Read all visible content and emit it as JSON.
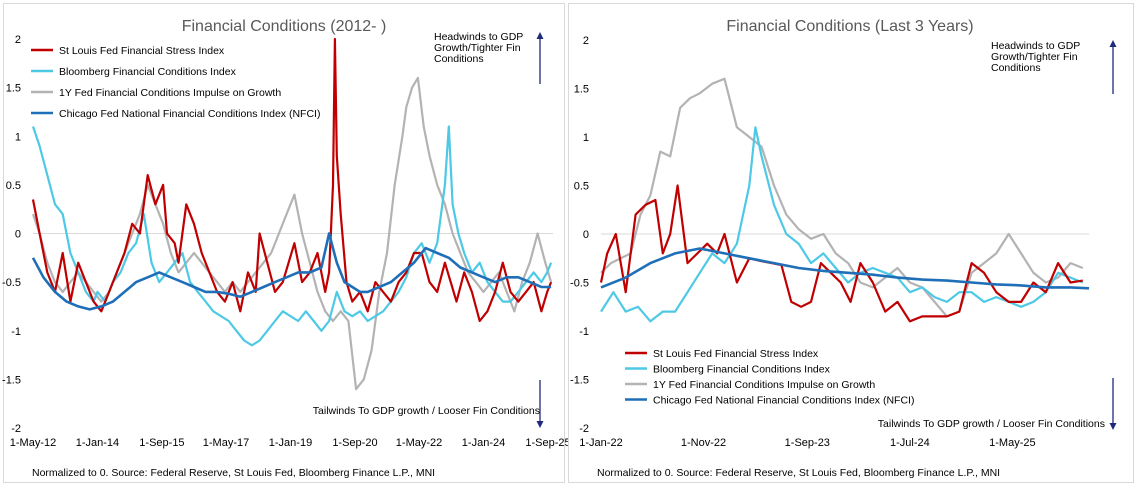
{
  "colors": {
    "red": "#c00000",
    "cyan": "#4dc9e6",
    "gray": "#b3b3b3",
    "blue": "#1f6fb8",
    "arrow": "#1f2a7a",
    "zero": "#d9d9d9"
  },
  "chart_data": [
    {
      "type": "line",
      "title": "Financial Conditions (2012- )",
      "xlabel": "",
      "ylabel": "",
      "ylim": [
        -2,
        2
      ],
      "xlim": [
        2012.33,
        2025.8
      ],
      "yticks": [
        "2",
        "1.5",
        "1",
        "0.5",
        "0",
        "-0.5",
        "-1",
        "-1.5",
        "-2"
      ],
      "ytick_values": [
        2,
        1.5,
        1,
        0.5,
        0,
        -0.5,
        -1,
        -1.5,
        -2
      ],
      "xticks": [
        "1-May-12",
        "1-Jan-14",
        "1-Sep-15",
        "1-May-17",
        "1-Jan-19",
        "1-Sep-20",
        "1-May-22",
        "1-Jan-24",
        "1-Sep-25"
      ],
      "xtick_values": [
        2012.33,
        2014.0,
        2015.67,
        2017.33,
        2019.0,
        2020.67,
        2022.33,
        2024.0,
        2025.67
      ],
      "legend_position": "top-left",
      "annotations": {
        "top": [
          "Headwinds to GDP",
          "Growth/Tighter Fin",
          "Conditions"
        ],
        "bottom": [
          "Tailwinds To GDP growth / Looser Fin Conditions"
        ]
      },
      "source": "Normalized to 0. Source: Federal Reserve, St Louis Fed, Bloomberg Finance L.P., MNI",
      "series": [
        {
          "name": "St Louis Fed Financial Stress Index",
          "color": "red",
          "x": [
            2012.33,
            2012.5,
            2012.7,
            2012.9,
            2013.1,
            2013.3,
            2013.5,
            2013.7,
            2013.9,
            2014.1,
            2014.3,
            2014.5,
            2014.7,
            2014.9,
            2015.1,
            2015.3,
            2015.5,
            2015.7,
            2015.8,
            2016.0,
            2016.1,
            2016.3,
            2016.5,
            2016.7,
            2016.9,
            2017.1,
            2017.3,
            2017.5,
            2017.7,
            2017.9,
            2018.1,
            2018.2,
            2018.4,
            2018.6,
            2018.8,
            2018.95,
            2019.1,
            2019.3,
            2019.5,
            2019.7,
            2019.9,
            2020.0,
            2020.1,
            2020.15,
            2020.2,
            2020.3,
            2020.45,
            2020.6,
            2020.8,
            2021.0,
            2021.2,
            2021.4,
            2021.6,
            2021.8,
            2022.0,
            2022.2,
            2022.4,
            2022.6,
            2022.8,
            2023.0,
            2023.15,
            2023.3,
            2023.5,
            2023.7,
            2023.9,
            2024.1,
            2024.3,
            2024.5,
            2024.7,
            2024.9,
            2025.1,
            2025.3,
            2025.5,
            2025.65,
            2025.75
          ],
          "values": [
            0.35,
            0.0,
            -0.4,
            -0.6,
            -0.2,
            -0.7,
            -0.3,
            -0.5,
            -0.7,
            -0.8,
            -0.6,
            -0.4,
            -0.2,
            0.1,
            0.0,
            0.6,
            0.3,
            0.5,
            0.0,
            -0.1,
            -0.3,
            0.3,
            0.1,
            -0.2,
            -0.4,
            -0.6,
            -0.7,
            -0.5,
            -0.8,
            -0.4,
            -0.6,
            0.0,
            -0.3,
            -0.6,
            -0.5,
            -0.3,
            -0.1,
            -0.5,
            -0.4,
            -0.2,
            -0.6,
            -0.4,
            0.5,
            2.0,
            0.8,
            0.2,
            -0.5,
            -0.7,
            -0.6,
            -0.8,
            -0.5,
            -0.6,
            -0.7,
            -0.5,
            -0.4,
            -0.2,
            -0.2,
            -0.5,
            -0.6,
            -0.3,
            -0.5,
            -0.7,
            -0.4,
            -0.6,
            -0.9,
            -0.8,
            -0.6,
            -0.3,
            -0.6,
            -0.7,
            -0.6,
            -0.5,
            -0.8,
            -0.6,
            -0.5
          ]
        },
        {
          "name": "Bloomberg Financial Conditions Index",
          "color": "cyan",
          "x": [
            2012.33,
            2012.5,
            2012.7,
            2012.9,
            2013.1,
            2013.3,
            2013.5,
            2013.7,
            2013.9,
            2014.0,
            2014.2,
            2014.4,
            2014.6,
            2014.8,
            2015.0,
            2015.2,
            2015.4,
            2015.6,
            2015.8,
            2016.0,
            2016.2,
            2016.4,
            2016.6,
            2016.8,
            2017.0,
            2017.2,
            2017.4,
            2017.6,
            2017.8,
            2018.0,
            2018.2,
            2018.4,
            2018.6,
            2018.8,
            2019.0,
            2019.2,
            2019.4,
            2019.6,
            2019.8,
            2020.0,
            2020.2,
            2020.4,
            2020.6,
            2020.8,
            2021.0,
            2021.2,
            2021.4,
            2021.6,
            2021.8,
            2022.0,
            2022.2,
            2022.4,
            2022.6,
            2022.8,
            2023.0,
            2023.1,
            2023.2,
            2023.35,
            2023.5,
            2023.7,
            2023.9,
            2024.1,
            2024.3,
            2024.5,
            2024.7,
            2024.9,
            2025.1,
            2025.3,
            2025.5,
            2025.65,
            2025.75
          ],
          "values": [
            1.1,
            0.9,
            0.6,
            0.3,
            0.2,
            -0.2,
            -0.4,
            -0.6,
            -0.7,
            -0.6,
            -0.7,
            -0.5,
            -0.4,
            -0.2,
            -0.1,
            0.2,
            -0.3,
            -0.5,
            -0.4,
            -0.3,
            -0.2,
            -0.5,
            -0.6,
            -0.7,
            -0.8,
            -0.85,
            -0.9,
            -1.0,
            -1.1,
            -1.15,
            -1.1,
            -1.0,
            -0.9,
            -0.8,
            -0.85,
            -0.9,
            -0.8,
            -0.9,
            -1.0,
            -0.9,
            -0.6,
            -0.8,
            -0.85,
            -0.8,
            -0.9,
            -0.85,
            -0.8,
            -0.7,
            -0.6,
            -0.45,
            -0.2,
            -0.1,
            -0.3,
            -0.1,
            0.5,
            1.1,
            0.3,
            0.0,
            -0.2,
            -0.4,
            -0.3,
            -0.5,
            -0.6,
            -0.7,
            -0.7,
            -0.6,
            -0.5,
            -0.4,
            -0.5,
            -0.4,
            -0.3
          ]
        },
        {
          "name": "1Y Fed Financial Conditions Impulse on Growth",
          "color": "gray",
          "x": [
            2012.33,
            2012.5,
            2012.7,
            2012.9,
            2013.1,
            2013.3,
            2013.5,
            2013.7,
            2013.9,
            2014.1,
            2014.3,
            2014.5,
            2014.7,
            2014.9,
            2015.1,
            2015.3,
            2015.5,
            2015.7,
            2015.9,
            2016.1,
            2016.3,
            2016.5,
            2016.7,
            2016.9,
            2017.1,
            2017.3,
            2017.5,
            2017.7,
            2017.9,
            2018.1,
            2018.3,
            2018.5,
            2018.7,
            2018.9,
            2019.1,
            2019.3,
            2019.5,
            2019.7,
            2019.9,
            2020.1,
            2020.3,
            2020.5,
            2020.7,
            2020.9,
            2021.1,
            2021.3,
            2021.5,
            2021.7,
            2021.9,
            2022.0,
            2022.15,
            2022.3,
            2022.45,
            2022.6,
            2022.8,
            2023.0,
            2023.2,
            2023.4,
            2023.6,
            2023.8,
            2024.0,
            2024.2,
            2024.4,
            2024.6,
            2024.8,
            2025.0,
            2025.2,
            2025.4,
            2025.6,
            2025.75
          ],
          "values": [
            0.2,
            0.0,
            -0.3,
            -0.5,
            -0.6,
            -0.5,
            -0.4,
            -0.5,
            -0.6,
            -0.7,
            -0.6,
            -0.4,
            -0.2,
            0.0,
            0.2,
            0.5,
            0.3,
            0.1,
            -0.2,
            -0.4,
            -0.3,
            -0.2,
            -0.3,
            -0.4,
            -0.5,
            -0.6,
            -0.5,
            -0.6,
            -0.5,
            -0.4,
            -0.3,
            -0.2,
            0.0,
            0.2,
            0.4,
            0.0,
            -0.3,
            -0.6,
            -0.8,
            -0.9,
            -0.8,
            -0.9,
            -1.6,
            -1.5,
            -1.2,
            -0.6,
            -0.2,
            0.5,
            1.0,
            1.3,
            1.5,
            1.6,
            1.1,
            0.8,
            0.5,
            0.3,
            0.0,
            -0.2,
            -0.4,
            -0.5,
            -0.6,
            -0.5,
            -0.4,
            -0.6,
            -0.8,
            -0.5,
            -0.3,
            0.0,
            -0.3,
            -0.5
          ]
        },
        {
          "name": "Chicago Fed National Financial Conditions Index (NFCI)",
          "color": "blue",
          "x": [
            2012.33,
            2012.6,
            2012.9,
            2013.2,
            2013.5,
            2013.8,
            2014.1,
            2014.4,
            2014.7,
            2015.0,
            2015.3,
            2015.6,
            2015.9,
            2016.2,
            2016.5,
            2016.8,
            2017.1,
            2017.4,
            2017.7,
            2018.0,
            2018.3,
            2018.6,
            2018.9,
            2019.2,
            2019.5,
            2019.8,
            2020.0,
            2020.2,
            2020.4,
            2020.6,
            2020.8,
            2021.0,
            2021.3,
            2021.6,
            2021.9,
            2022.2,
            2022.5,
            2022.8,
            2023.1,
            2023.4,
            2023.7,
            2024.0,
            2024.3,
            2024.6,
            2024.9,
            2025.2,
            2025.5,
            2025.75
          ],
          "values": [
            -0.25,
            -0.45,
            -0.6,
            -0.7,
            -0.75,
            -0.78,
            -0.75,
            -0.7,
            -0.6,
            -0.5,
            -0.45,
            -0.4,
            -0.45,
            -0.5,
            -0.55,
            -0.6,
            -0.6,
            -0.62,
            -0.65,
            -0.6,
            -0.55,
            -0.5,
            -0.45,
            -0.4,
            -0.4,
            -0.35,
            0.0,
            -0.3,
            -0.5,
            -0.55,
            -0.6,
            -0.6,
            -0.55,
            -0.5,
            -0.4,
            -0.3,
            -0.15,
            -0.2,
            -0.25,
            -0.35,
            -0.4,
            -0.45,
            -0.5,
            -0.45,
            -0.45,
            -0.5,
            -0.55,
            -0.55
          ]
        }
      ]
    },
    {
      "type": "line",
      "title": "Financial Conditions (Last 3 Years)",
      "xlabel": "",
      "ylabel": "",
      "ylim": [
        -2,
        2
      ],
      "xlim": [
        2022.0,
        2025.95
      ],
      "yticks": [
        "2",
        "1.5",
        "1",
        "0.5",
        "0",
        "-0.5",
        "-1",
        "-1.5",
        "-2"
      ],
      "ytick_values": [
        2,
        1.5,
        1,
        0.5,
        0,
        -0.5,
        -1,
        -1.5,
        -2
      ],
      "xticks": [
        "1-Jan-22",
        "1-Nov-22",
        "1-Sep-23",
        "1-Jul-24",
        "1-May-25"
      ],
      "xtick_values": [
        2022.0,
        2022.83,
        2023.67,
        2024.5,
        2025.33
      ],
      "legend_position": "bottom-left",
      "annotations": {
        "top": [
          "Headwinds to GDP",
          "Growth/Tighter Fin",
          "Conditions"
        ],
        "bottom": [
          "Tailwinds To GDP growth / Looser Fin Conditions"
        ]
      },
      "source": "Normalized to 0. Source: Federal Reserve, St Louis Fed, Bloomberg Finance L.P., MNI",
      "series": [
        {
          "name": "St Louis Fed Financial Stress Index",
          "color": "red",
          "x": [
            2022.0,
            2022.05,
            2022.12,
            2022.2,
            2022.28,
            2022.36,
            2022.44,
            2022.5,
            2022.56,
            2022.62,
            2022.7,
            2022.78,
            2022.86,
            2022.94,
            2023.0,
            2023.1,
            2023.2,
            2023.3,
            2023.38,
            2023.46,
            2023.54,
            2023.62,
            2023.7,
            2023.78,
            2023.86,
            2023.94,
            2024.02,
            2024.1,
            2024.2,
            2024.3,
            2024.4,
            2024.5,
            2024.6,
            2024.7,
            2024.8,
            2024.9,
            2025.0,
            2025.1,
            2025.2,
            2025.3,
            2025.4,
            2025.5,
            2025.6,
            2025.7,
            2025.8,
            2025.9
          ],
          "values": [
            -0.5,
            -0.2,
            0.0,
            -0.6,
            0.2,
            0.3,
            0.35,
            -0.2,
            0.0,
            0.5,
            -0.3,
            -0.2,
            -0.1,
            -0.2,
            0.0,
            -0.5,
            -0.25,
            -0.28,
            -0.3,
            -0.32,
            -0.7,
            -0.75,
            -0.7,
            -0.3,
            -0.4,
            -0.5,
            -0.7,
            -0.3,
            -0.5,
            -0.8,
            -0.7,
            -0.9,
            -0.85,
            -0.85,
            -0.85,
            -0.8,
            -0.3,
            -0.4,
            -0.6,
            -0.7,
            -0.7,
            -0.5,
            -0.6,
            -0.3,
            -0.5,
            -0.48
          ]
        },
        {
          "name": "Bloomberg Financial Conditions Index",
          "color": "cyan",
          "x": [
            2022.0,
            2022.1,
            2022.2,
            2022.3,
            2022.4,
            2022.5,
            2022.6,
            2022.7,
            2022.8,
            2022.9,
            2023.0,
            2023.1,
            2023.2,
            2023.25,
            2023.3,
            2023.4,
            2023.5,
            2023.6,
            2023.7,
            2023.8,
            2023.9,
            2024.0,
            2024.1,
            2024.2,
            2024.3,
            2024.4,
            2024.5,
            2024.6,
            2024.7,
            2024.8,
            2024.9,
            2025.0,
            2025.1,
            2025.2,
            2025.3,
            2025.4,
            2025.5,
            2025.6,
            2025.7,
            2025.8,
            2025.9
          ],
          "values": [
            -0.8,
            -0.6,
            -0.8,
            -0.75,
            -0.9,
            -0.8,
            -0.8,
            -0.6,
            -0.4,
            -0.2,
            -0.3,
            -0.1,
            0.5,
            1.1,
            0.8,
            0.3,
            0.0,
            -0.1,
            -0.3,
            -0.2,
            -0.35,
            -0.5,
            -0.4,
            -0.35,
            -0.4,
            -0.45,
            -0.6,
            -0.55,
            -0.65,
            -0.7,
            -0.6,
            -0.6,
            -0.7,
            -0.65,
            -0.7,
            -0.75,
            -0.7,
            -0.6,
            -0.4,
            -0.45,
            -0.5
          ]
        },
        {
          "name": "1Y Fed Financial Conditions Impulse on Growth",
          "color": "gray",
          "x": [
            2022.0,
            2022.08,
            2022.16,
            2022.24,
            2022.32,
            2022.4,
            2022.48,
            2022.56,
            2022.64,
            2022.72,
            2022.8,
            2022.9,
            2023.0,
            2023.1,
            2023.2,
            2023.3,
            2023.4,
            2023.5,
            2023.6,
            2023.7,
            2023.8,
            2023.9,
            2024.0,
            2024.1,
            2024.2,
            2024.3,
            2024.4,
            2024.5,
            2024.6,
            2024.7,
            2024.8,
            2024.9,
            2025.0,
            2025.1,
            2025.2,
            2025.3,
            2025.4,
            2025.5,
            2025.6,
            2025.7,
            2025.8,
            2025.9
          ],
          "values": [
            -0.4,
            -0.3,
            -0.25,
            -0.2,
            0.2,
            0.4,
            0.85,
            0.8,
            1.3,
            1.4,
            1.45,
            1.55,
            1.6,
            1.1,
            1.0,
            0.9,
            0.5,
            0.2,
            0.05,
            -0.05,
            0.0,
            -0.2,
            -0.3,
            -0.5,
            -0.55,
            -0.45,
            -0.35,
            -0.5,
            -0.55,
            -0.7,
            -0.85,
            -0.8,
            -0.4,
            -0.3,
            -0.2,
            0.0,
            -0.2,
            -0.4,
            -0.5,
            -0.45,
            -0.3,
            -0.35
          ]
        },
        {
          "name": "Chicago Fed National Financial Conditions Index (NFCI)",
          "color": "blue",
          "x": [
            2022.0,
            2022.2,
            2022.4,
            2022.6,
            2022.8,
            2023.0,
            2023.2,
            2023.4,
            2023.6,
            2023.8,
            2024.0,
            2024.2,
            2024.4,
            2024.6,
            2024.8,
            2025.0,
            2025.2,
            2025.4,
            2025.6,
            2025.8,
            2025.95
          ],
          "values": [
            -0.55,
            -0.45,
            -0.3,
            -0.2,
            -0.15,
            -0.2,
            -0.25,
            -0.3,
            -0.35,
            -0.38,
            -0.4,
            -0.42,
            -0.45,
            -0.47,
            -0.48,
            -0.5,
            -0.52,
            -0.53,
            -0.55,
            -0.55,
            -0.56
          ]
        }
      ]
    }
  ]
}
